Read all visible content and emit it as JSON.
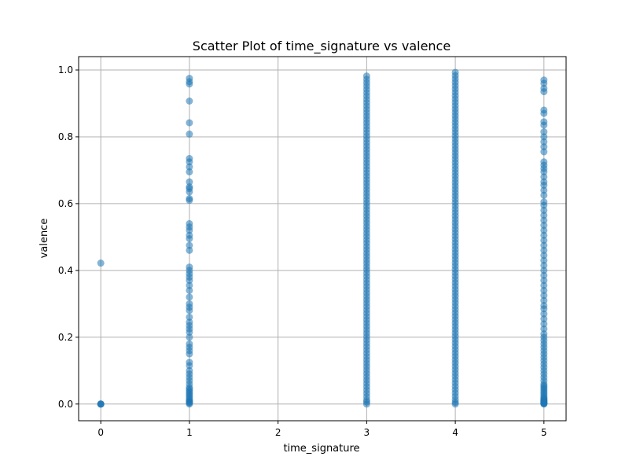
{
  "chart_data": {
    "type": "scatter",
    "title": "Scatter Plot of time_signature vs valence",
    "xlabel": "time_signature",
    "ylabel": "valence",
    "xlim": [
      -0.25,
      5.25
    ],
    "ylim": [
      -0.05,
      1.04
    ],
    "xticks": [
      0,
      1,
      2,
      3,
      4,
      5
    ],
    "yticks": [
      0.0,
      0.2,
      0.4,
      0.6,
      0.8,
      1.0
    ],
    "xtick_labels": [
      "0",
      "1",
      "2",
      "3",
      "4",
      "5"
    ],
    "ytick_labels": [
      "0.0",
      "0.2",
      "0.4",
      "0.6",
      "0.8",
      "1.0"
    ],
    "grid": true,
    "marker_color": "#1f77b4",
    "series": [
      {
        "x": [
          0,
          0,
          0,
          0,
          0,
          1,
          1,
          1,
          1,
          1,
          1,
          1,
          1,
          1,
          1,
          1,
          1,
          1,
          1,
          1,
          1,
          1,
          1,
          1,
          1,
          1,
          1,
          1,
          1,
          1,
          1,
          1,
          1,
          1,
          1,
          1,
          1,
          1,
          1,
          1,
          1,
          1,
          1,
          1,
          1,
          1,
          1,
          1,
          1,
          1,
          1,
          1,
          1,
          1,
          1,
          1,
          1,
          1,
          1,
          1,
          1,
          1,
          1,
          1,
          1,
          1,
          1,
          1,
          1
        ],
        "y": [
          0.422,
          0.0,
          0.0,
          0.0,
          0.0,
          0.975,
          0.965,
          0.958,
          0.907,
          0.842,
          0.808,
          0.735,
          0.725,
          0.71,
          0.695,
          0.665,
          0.65,
          0.645,
          0.635,
          0.615,
          0.61,
          0.54,
          0.53,
          0.52,
          0.505,
          0.495,
          0.475,
          0.46,
          0.41,
          0.4,
          0.39,
          0.38,
          0.37,
          0.355,
          0.34,
          0.32,
          0.3,
          0.29,
          0.28,
          0.26,
          0.245,
          0.235,
          0.225,
          0.215,
          0.2,
          0.18,
          0.17,
          0.16,
          0.15,
          0.125,
          0.115,
          0.1,
          0.09,
          0.08,
          0.07,
          0.06,
          0.05,
          0.045,
          0.04,
          0.035,
          0.03,
          0.025,
          0.02,
          0.015,
          0.01,
          0.008,
          0.005,
          0.003,
          0.0
        ]
      },
      {
        "x": [
          3,
          3,
          3,
          3,
          3,
          3,
          3,
          3,
          3,
          3,
          3,
          3,
          3,
          3,
          3,
          3,
          3,
          3,
          3,
          3,
          3,
          3,
          3,
          3,
          3,
          3,
          3,
          3,
          3,
          3,
          3,
          3,
          3,
          3,
          3,
          3,
          3,
          3,
          3,
          3,
          3,
          3,
          3,
          3,
          3,
          3,
          3,
          3,
          3,
          3,
          3,
          3,
          3,
          3,
          3,
          3,
          3,
          3,
          3,
          3,
          3,
          3,
          3,
          3,
          3,
          3,
          3,
          3,
          3,
          3,
          3,
          3,
          3,
          3,
          3,
          3,
          3,
          3,
          3,
          3,
          3,
          3,
          3,
          3,
          3,
          3,
          3,
          3,
          3,
          3,
          3,
          3,
          3,
          3,
          3,
          3,
          3,
          3,
          3,
          3
        ],
        "y": [
          0.982,
          0.972,
          0.962,
          0.952,
          0.942,
          0.932,
          0.922,
          0.912,
          0.902,
          0.892,
          0.882,
          0.872,
          0.862,
          0.852,
          0.842,
          0.832,
          0.822,
          0.812,
          0.802,
          0.792,
          0.782,
          0.772,
          0.762,
          0.752,
          0.742,
          0.732,
          0.722,
          0.712,
          0.702,
          0.692,
          0.682,
          0.672,
          0.662,
          0.652,
          0.642,
          0.632,
          0.622,
          0.612,
          0.602,
          0.592,
          0.582,
          0.572,
          0.562,
          0.552,
          0.542,
          0.532,
          0.522,
          0.512,
          0.502,
          0.492,
          0.482,
          0.472,
          0.462,
          0.452,
          0.442,
          0.432,
          0.422,
          0.412,
          0.402,
          0.392,
          0.382,
          0.372,
          0.362,
          0.352,
          0.342,
          0.332,
          0.322,
          0.312,
          0.302,
          0.292,
          0.282,
          0.272,
          0.262,
          0.252,
          0.242,
          0.232,
          0.222,
          0.212,
          0.202,
          0.192,
          0.182,
          0.172,
          0.162,
          0.152,
          0.142,
          0.132,
          0.122,
          0.112,
          0.102,
          0.092,
          0.082,
          0.072,
          0.062,
          0.052,
          0.042,
          0.032,
          0.022,
          0.012,
          0.006,
          0.0
        ]
      },
      {
        "x": [
          4,
          4,
          4,
          4,
          4,
          4,
          4,
          4,
          4,
          4,
          4,
          4,
          4,
          4,
          4,
          4,
          4,
          4,
          4,
          4,
          4,
          4,
          4,
          4,
          4,
          4,
          4,
          4,
          4,
          4,
          4,
          4,
          4,
          4,
          4,
          4,
          4,
          4,
          4,
          4,
          4,
          4,
          4,
          4,
          4,
          4,
          4,
          4,
          4,
          4,
          4,
          4,
          4,
          4,
          4,
          4,
          4,
          4,
          4,
          4,
          4,
          4,
          4,
          4,
          4,
          4,
          4,
          4,
          4,
          4,
          4,
          4,
          4,
          4,
          4,
          4,
          4,
          4,
          4,
          4,
          4,
          4,
          4,
          4,
          4,
          4,
          4,
          4,
          4,
          4,
          4,
          4,
          4,
          4,
          4,
          4,
          4,
          4,
          4,
          4,
          4
        ],
        "y": [
          0.993,
          0.983,
          0.973,
          0.963,
          0.953,
          0.943,
          0.933,
          0.923,
          0.913,
          0.903,
          0.893,
          0.883,
          0.873,
          0.863,
          0.853,
          0.843,
          0.833,
          0.823,
          0.813,
          0.803,
          0.793,
          0.783,
          0.773,
          0.763,
          0.753,
          0.743,
          0.733,
          0.723,
          0.713,
          0.703,
          0.693,
          0.683,
          0.673,
          0.663,
          0.653,
          0.643,
          0.633,
          0.623,
          0.613,
          0.603,
          0.593,
          0.583,
          0.573,
          0.563,
          0.553,
          0.543,
          0.533,
          0.523,
          0.513,
          0.503,
          0.493,
          0.483,
          0.473,
          0.463,
          0.453,
          0.443,
          0.433,
          0.423,
          0.413,
          0.403,
          0.393,
          0.383,
          0.373,
          0.363,
          0.353,
          0.343,
          0.333,
          0.323,
          0.313,
          0.303,
          0.293,
          0.283,
          0.273,
          0.263,
          0.253,
          0.243,
          0.233,
          0.223,
          0.213,
          0.203,
          0.193,
          0.183,
          0.173,
          0.163,
          0.153,
          0.143,
          0.133,
          0.123,
          0.113,
          0.103,
          0.093,
          0.083,
          0.073,
          0.063,
          0.053,
          0.043,
          0.033,
          0.023,
          0.013,
          0.005,
          0.0
        ]
      },
      {
        "x": [
          5,
          5,
          5,
          5,
          5,
          5,
          5,
          5,
          5,
          5,
          5,
          5,
          5,
          5,
          5,
          5,
          5,
          5,
          5,
          5,
          5,
          5,
          5,
          5,
          5,
          5,
          5,
          5,
          5,
          5,
          5,
          5,
          5,
          5,
          5,
          5,
          5,
          5,
          5,
          5,
          5,
          5,
          5,
          5,
          5,
          5,
          5,
          5,
          5,
          5,
          5,
          5,
          5,
          5,
          5,
          5,
          5,
          5,
          5,
          5,
          5,
          5,
          5,
          5,
          5,
          5,
          5,
          5,
          5,
          5,
          5,
          5,
          5,
          5,
          5,
          5,
          5,
          5,
          5,
          5,
          5,
          5,
          5,
          5
        ],
        "y": [
          0.97,
          0.96,
          0.945,
          0.935,
          0.88,
          0.87,
          0.845,
          0.835,
          0.815,
          0.8,
          0.785,
          0.77,
          0.755,
          0.725,
          0.715,
          0.705,
          0.695,
          0.68,
          0.665,
          0.655,
          0.64,
          0.625,
          0.605,
          0.595,
          0.58,
          0.565,
          0.55,
          0.535,
          0.52,
          0.505,
          0.49,
          0.475,
          0.46,
          0.445,
          0.43,
          0.415,
          0.4,
          0.385,
          0.37,
          0.355,
          0.34,
          0.325,
          0.31,
          0.295,
          0.285,
          0.27,
          0.255,
          0.24,
          0.225,
          0.21,
          0.2,
          0.19,
          0.18,
          0.17,
          0.16,
          0.15,
          0.14,
          0.13,
          0.12,
          0.11,
          0.1,
          0.09,
          0.08,
          0.07,
          0.06,
          0.055,
          0.05,
          0.045,
          0.04,
          0.035,
          0.03,
          0.025,
          0.02,
          0.017,
          0.014,
          0.011,
          0.009,
          0.007,
          0.005,
          0.004,
          0.003,
          0.002,
          0.001,
          0.0
        ]
      }
    ]
  }
}
